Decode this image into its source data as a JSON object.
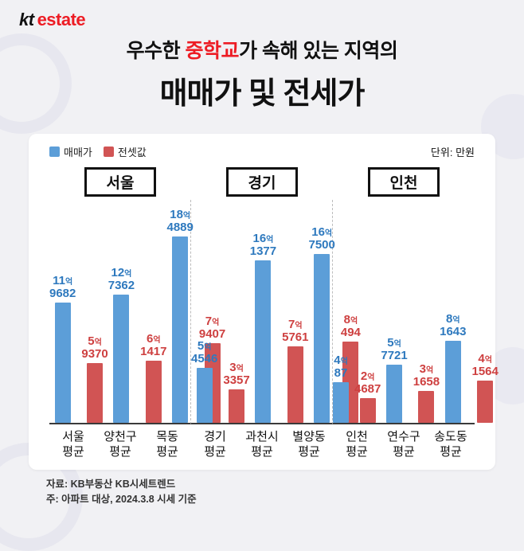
{
  "logo": {
    "kt": "kt",
    "estate": "estate"
  },
  "title": {
    "line1_pre": "우수한 ",
    "line1_highlight": "중학교",
    "line1_post": "가 속해 있는 지역의",
    "line2": "매매가 및 전세가"
  },
  "legend": [
    {
      "label": "매매가",
      "color": "#5c9ed8"
    },
    {
      "label": "전셋값",
      "color": "#d15454"
    }
  ],
  "unit_label": "단위: 만원",
  "footer": {
    "source": "자료: KB부동산 KB시세트렌드",
    "note": "주: 아파트 대상, 2024.3.8 시세 기준"
  },
  "chart_data": {
    "type": "bar",
    "title": "우수한 중학교가 속해 있는 지역의 매매가 및 전세가",
    "unit": "만원",
    "max_value": 184889,
    "series_names": [
      "매매가",
      "전셋값"
    ],
    "colors": {
      "sale": "#5c9ed8",
      "jeonse": "#d15454"
    },
    "legend_position": "top-left",
    "groups": [
      {
        "name": "서울",
        "categories": [
          {
            "label_lines": [
              "서울",
              "평균"
            ],
            "sale": 119682,
            "sale_label": [
              "11억",
              "9682"
            ],
            "jeonse": 59370,
            "jeonse_label": [
              "5억",
              "9370"
            ]
          },
          {
            "label_lines": [
              "양천구",
              "평균"
            ],
            "sale": 127362,
            "sale_label": [
              "12억",
              "7362"
            ],
            "jeonse": 61417,
            "jeonse_label": [
              "6억",
              "1417"
            ]
          },
          {
            "label_lines": [
              "목동",
              "평균"
            ],
            "sale": 184889,
            "sale_label": [
              "18억",
              "4889"
            ],
            "jeonse": 79407,
            "jeonse_label": [
              "7억",
              "9407"
            ]
          }
        ]
      },
      {
        "name": "경기",
        "categories": [
          {
            "label_lines": [
              "경기",
              "평균"
            ],
            "sale": 54546,
            "sale_label": [
              "5억",
              "4546"
            ],
            "jeonse": 33357,
            "jeonse_label": [
              "3억",
              "3357"
            ]
          },
          {
            "label_lines": [
              "과천시",
              "평균"
            ],
            "sale": 161377,
            "sale_label": [
              "16억",
              "1377"
            ],
            "jeonse": 75761,
            "jeonse_label": [
              "7억",
              "5761"
            ]
          },
          {
            "label_lines": [
              "별양동",
              "평균"
            ],
            "sale": 167500,
            "sale_label": [
              "16억",
              "7500"
            ],
            "jeonse": 80494,
            "jeonse_label": [
              "8억",
              "494"
            ]
          }
        ]
      },
      {
        "name": "인천",
        "categories": [
          {
            "label_lines": [
              "인천",
              "평균"
            ],
            "sale": 40087,
            "sale_label": [
              "4억",
              "87"
            ],
            "jeonse": 24687,
            "jeonse_label": [
              "2억",
              "4687"
            ]
          },
          {
            "label_lines": [
              "연수구",
              "평균"
            ],
            "sale": 57721,
            "sale_label": [
              "5억",
              "7721"
            ],
            "jeonse": 31658,
            "jeonse_label": [
              "3억",
              "1658"
            ]
          },
          {
            "label_lines": [
              "송도동",
              "평균"
            ],
            "sale": 81643,
            "sale_label": [
              "8억",
              "1643"
            ],
            "jeonse": 41564,
            "jeonse_label": [
              "4억",
              "1564"
            ]
          }
        ]
      }
    ]
  }
}
